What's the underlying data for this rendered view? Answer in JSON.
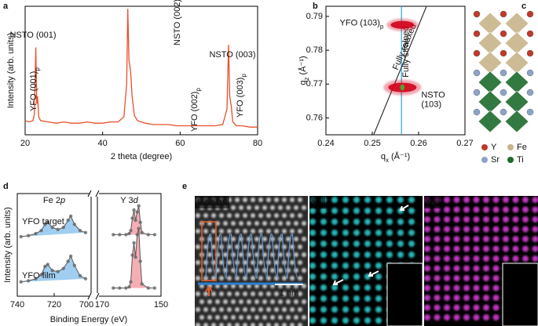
{
  "panel_labels": [
    "a",
    "b",
    "c",
    "d",
    "e"
  ],
  "chart_data": [
    {
      "type": "line",
      "x_label": "2 theta (degree)",
      "y_label": "Intensity (arb. units)",
      "xlim": [
        20,
        80
      ],
      "xticks": [
        20,
        40,
        60,
        80
      ],
      "ylim": [
        0,
        100
      ],
      "x": [
        20,
        21,
        22,
        22.4,
        22.75,
        23.0,
        23.2,
        23.5,
        24,
        26,
        28,
        30,
        32,
        34,
        36,
        38,
        40,
        42,
        44,
        45.5,
        46.2,
        46.5,
        46.8,
        47.2,
        47.6,
        48.2,
        49,
        51,
        53,
        55,
        57,
        59,
        61,
        63,
        65,
        67,
        69,
        71,
        72.1,
        72.5,
        72.8,
        73.2,
        73.6,
        74.5,
        76,
        78,
        80
      ],
      "values": [
        11,
        10,
        11,
        16,
        68,
        24,
        30,
        14,
        11,
        10,
        9,
        10,
        9,
        9,
        10,
        9,
        9,
        10,
        10,
        14,
        40,
        98,
        58,
        50,
        30,
        15,
        11,
        9,
        8,
        8,
        8,
        7,
        7,
        7,
        7,
        7,
        7,
        8,
        20,
        70,
        30,
        22,
        10,
        7,
        7,
        6,
        6
      ],
      "color": "#e8502a",
      "annotations": [
        {
          "text": "NSTO (001)"
        },
        {
          "text": "YFO (001)",
          "sub": "p"
        },
        {
          "text": "NSTO (002)"
        },
        {
          "text": "YFO (002)",
          "sub": "p"
        },
        {
          "text": "NSTO (003)"
        },
        {
          "text": "YFO (003)",
          "sub": "p"
        }
      ]
    },
    {
      "type": "scatter",
      "x_label": {
        "text": "q",
        "sub": "x",
        "unit": " (Å⁻¹)"
      },
      "y_label": {
        "text": "q",
        "sub": "z",
        "unit": " (Å⁻¹)"
      },
      "xlim": [
        0.24,
        0.27
      ],
      "xticks": [
        0.24,
        0.25,
        0.26,
        0.27
      ],
      "ylim": [
        0.755,
        0.793
      ],
      "yticks": [
        0.76,
        0.77,
        0.78,
        0.79
      ],
      "x": [
        0.2565,
        0.2565
      ],
      "values": [
        0.7875,
        0.769
      ],
      "color": "#d0021b",
      "point_labels": [
        {
          "text": "YFO (103)",
          "sub": "p"
        },
        {
          "lines": [
            "NSTO",
            "(103)"
          ]
        }
      ],
      "reference_lines": [
        {
          "label": "Fully strained",
          "color": "#29a8d8",
          "x": [
            0.2563,
            0.2563
          ],
          "y": [
            0.755,
            0.793
          ]
        },
        {
          "label": "Fully relaxed",
          "color": "#333333",
          "x": [
            0.2503,
            0.2617
          ],
          "y": [
            0.755,
            0.793
          ]
        }
      ]
    },
    {
      "type": "broken-line",
      "x_label": "Binding Energy (eV)",
      "y_label": "Intensity (arb. units)",
      "ylim": [
        0,
        100
      ],
      "series_names": [
        "YFO target",
        "YFO film"
      ],
      "marker_color": "#666666",
      "segments": [
        {
          "title": {
            "text": "Fe 2",
            "italic": "p"
          },
          "xlim": [
            740,
            700
          ],
          "xticks": [
            740,
            720,
            700
          ],
          "fill": "#8ec5ee",
          "x": [
            738,
            734,
            730,
            727,
            725,
            723.5,
            721,
            718,
            715,
            712.5,
            711,
            709,
            706,
            703
          ],
          "values": [
            [
              58,
              59,
              61,
              64,
              70,
              72,
              67,
              65,
              67,
              74,
              78,
              70,
              64,
              62
            ],
            [
              14,
              15,
              17,
              21,
              29,
              31,
              25,
              24,
              27,
              34,
              39,
              30,
              20,
              17
            ]
          ]
        },
        {
          "title": {
            "text": "Y 3",
            "italic": "d"
          },
          "xlim": [
            170,
            150
          ],
          "xticks": [
            170,
            150
          ],
          "fill": "#f4a0a8",
          "x": [
            165,
            163,
            161,
            160,
            159.5,
            159,
            158.5,
            158,
            157.5,
            157,
            156.5,
            156,
            154,
            152
          ],
          "values": [
            [
              60,
              60,
              60,
              61,
              64,
              76,
              84,
              74,
              82,
              88,
              72,
              62,
              60,
              60
            ],
            [
              8,
              8,
              8,
              9,
              14,
              40,
              52,
              38,
              60,
              66,
              34,
              12,
              8,
              8
            ]
          ]
        }
      ]
    }
  ],
  "structure": {
    "legend": [
      {
        "name": "Y",
        "color": "#c0392b"
      },
      {
        "name": "Fe",
        "color": "#c8b48a"
      },
      {
        "name": "Sr",
        "color": "#8ea3c8"
      },
      {
        "name": "Ti",
        "color": "#1e6b2e"
      }
    ]
  },
  "images": {
    "panels": [
      {
        "label": "HAADF",
        "color": "#e6e6e6"
      },
      {
        "label": "Y",
        "color": "#2fd6d6"
      },
      {
        "label": "Fe",
        "color": "#e040e0"
      }
    ],
    "scale_bar": "1 nm"
  }
}
